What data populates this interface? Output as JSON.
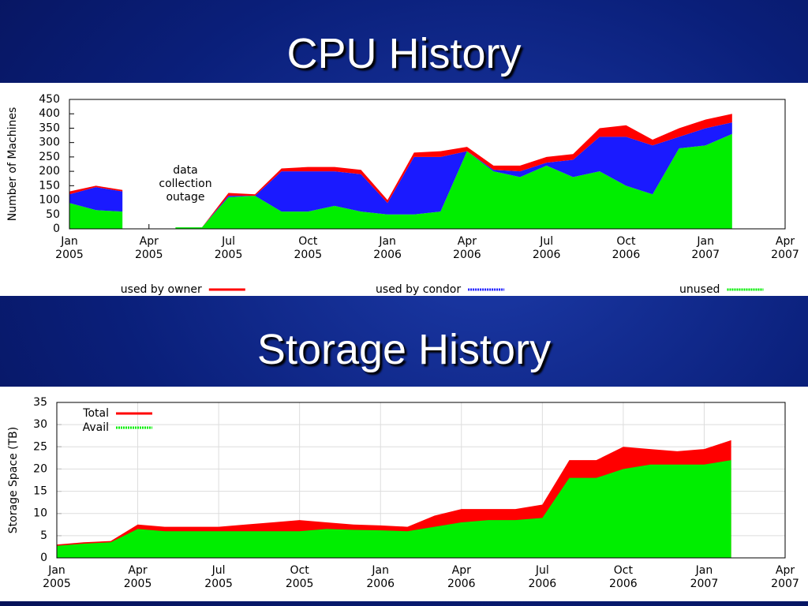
{
  "chart_data": [
    {
      "type": "area",
      "stacked": true,
      "title": "CPU History",
      "ylabel": "Number of Machines",
      "annotation": "data collection outage",
      "grid": false,
      "legend": "bottom",
      "x": [
        "2005-01",
        "2005-02",
        "2005-03",
        "2005-04",
        "2005-05",
        "2005-06",
        "2005-07",
        "2005-08",
        "2005-09",
        "2005-10",
        "2005-11",
        "2005-12",
        "2006-01",
        "2006-02",
        "2006-03",
        "2006-04",
        "2006-05",
        "2006-06",
        "2006-07",
        "2006-08",
        "2006-09",
        "2006-10",
        "2006-11",
        "2006-12",
        "2007-01",
        "2007-02"
      ],
      "series": [
        {
          "name": "used by owner",
          "color": "#ff0000",
          "line_style": "solid",
          "values": [
            10,
            5,
            5,
            null,
            0,
            0,
            10,
            5,
            10,
            15,
            15,
            15,
            10,
            15,
            20,
            15,
            15,
            20,
            20,
            20,
            30,
            40,
            20,
            30,
            30,
            30
          ]
        },
        {
          "name": "used by condor",
          "color": "#1a1aff",
          "line_style": "dotted",
          "values": [
            30,
            80,
            70,
            null,
            0,
            0,
            5,
            0,
            140,
            140,
            120,
            130,
            40,
            200,
            190,
            0,
            5,
            20,
            10,
            60,
            120,
            170,
            170,
            40,
            60,
            40
          ]
        },
        {
          "name": "unused",
          "color": "#00ee00",
          "line_style": "dotted",
          "values": [
            90,
            65,
            60,
            null,
            5,
            5,
            110,
            115,
            60,
            60,
            80,
            60,
            50,
            50,
            60,
            270,
            200,
            180,
            220,
            180,
            200,
            150,
            120,
            280,
            290,
            330
          ]
        }
      ],
      "xlim": [
        "2005-01",
        "2007-04"
      ],
      "xticks": [
        {
          "value": "2005-01",
          "label": "Jan 2005"
        },
        {
          "value": "2005-04",
          "label": "Apr 2005"
        },
        {
          "value": "2005-07",
          "label": "Jul 2005"
        },
        {
          "value": "2005-10",
          "label": "Oct 2005"
        },
        {
          "value": "2006-01",
          "label": "Jan 2006"
        },
        {
          "value": "2006-04",
          "label": "Apr 2006"
        },
        {
          "value": "2006-07",
          "label": "Jul 2006"
        },
        {
          "value": "2006-10",
          "label": "Oct 2006"
        },
        {
          "value": "2007-01",
          "label": "Jan 2007"
        },
        {
          "value": "2007-04",
          "label": "Apr 2007"
        }
      ],
      "ylim": [
        0,
        450
      ],
      "yticks": [
        0,
        50,
        100,
        150,
        200,
        250,
        300,
        350,
        400,
        450
      ]
    },
    {
      "type": "area",
      "stacked": false,
      "title": "Storage History",
      "ylabel": "Storage Space (TB)",
      "grid": true,
      "legend": "upper left",
      "x": [
        "2005-01",
        "2005-02",
        "2005-03",
        "2005-04",
        "2005-05",
        "2005-06",
        "2005-07",
        "2005-08",
        "2005-09",
        "2005-10",
        "2005-11",
        "2005-12",
        "2006-01",
        "2006-02",
        "2006-03",
        "2006-04",
        "2006-05",
        "2006-06",
        "2006-07",
        "2006-08",
        "2006-09",
        "2006-10",
        "2006-11",
        "2006-12",
        "2007-01",
        "2007-02"
      ],
      "series": [
        {
          "name": "Total",
          "color": "#ff0000",
          "line_style": "solid",
          "values": [
            3,
            3.5,
            3.8,
            7.5,
            7,
            7,
            7,
            7.5,
            8,
            8.5,
            8,
            7.5,
            7.3,
            7,
            9.5,
            11,
            11,
            11,
            12,
            22,
            22,
            25,
            24.5,
            24,
            24.5,
            26.5
          ]
        },
        {
          "name": "Avail",
          "color": "#00ee00",
          "line_style": "dotted",
          "values": [
            2.7,
            3.2,
            3.5,
            6.5,
            6,
            6,
            6,
            6,
            6,
            6,
            6.5,
            6.3,
            6.2,
            6,
            7,
            8,
            8.5,
            8.5,
            9,
            18,
            18,
            20,
            21,
            21,
            21,
            22
          ]
        }
      ],
      "xlim": [
        "2005-01",
        "2007-04"
      ],
      "xticks": [
        {
          "value": "2005-01",
          "label": "Jan 2005"
        },
        {
          "value": "2005-04",
          "label": "Apr 2005"
        },
        {
          "value": "2005-07",
          "label": "Jul 2005"
        },
        {
          "value": "2005-10",
          "label": "Oct 2005"
        },
        {
          "value": "2006-01",
          "label": "Jan 2006"
        },
        {
          "value": "2006-04",
          "label": "Apr 2006"
        },
        {
          "value": "2006-07",
          "label": "Jul 2006"
        },
        {
          "value": "2006-10",
          "label": "Oct 2006"
        },
        {
          "value": "2007-01",
          "label": "Jan 2007"
        },
        {
          "value": "2007-04",
          "label": "Apr 2007"
        }
      ],
      "ylim": [
        0,
        35
      ],
      "yticks": [
        0,
        5,
        10,
        15,
        20,
        25,
        30,
        35
      ]
    }
  ]
}
